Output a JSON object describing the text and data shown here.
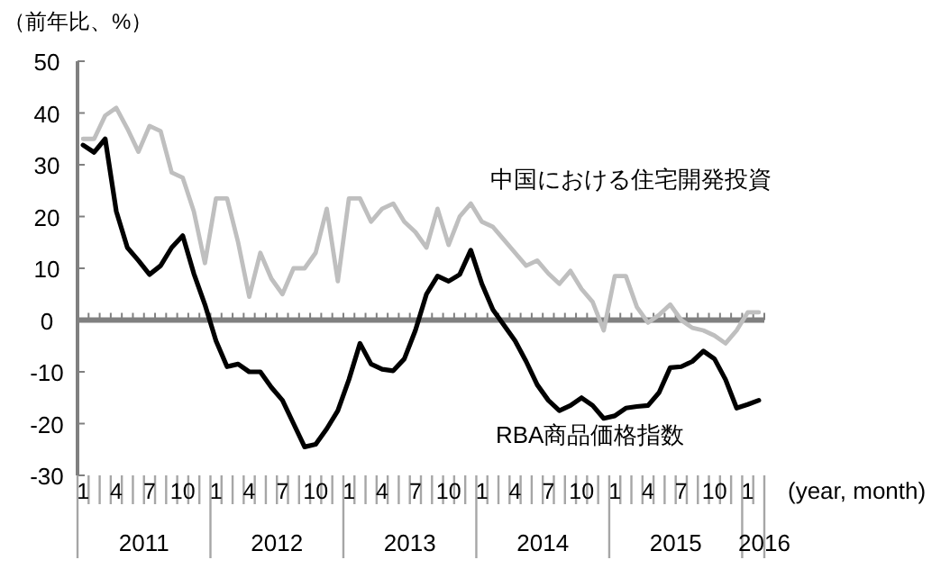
{
  "chart_data": {
    "type": "line",
    "ylabel": "（前年比、%）",
    "annotations": [
      "(year, month)",
      "2011",
      "2012",
      "2013",
      "2014",
      "2015",
      "2016"
    ],
    "categories": [
      "1",
      null,
      null,
      "4",
      null,
      null,
      "7",
      null,
      null,
      "10",
      null,
      null,
      "1",
      null,
      null,
      "4",
      null,
      null,
      "7",
      null,
      null,
      "10",
      null,
      null,
      "1",
      null,
      null,
      "4",
      null,
      null,
      "7",
      null,
      null,
      "10",
      null,
      null,
      "1",
      null,
      null,
      "4",
      null,
      null,
      "7",
      null,
      null,
      "10",
      null,
      null,
      "1",
      null,
      null,
      "4",
      null,
      null,
      "7",
      null,
      null,
      "10",
      null,
      null,
      "1",
      null
    ],
    "series": [
      {
        "name": "中国における住宅開発投資",
        "color": "#bfbfbf",
        "values": [
          35,
          35,
          39.5,
          41,
          37,
          32.5,
          37.5,
          36.5,
          28.5,
          27.5,
          21,
          11,
          23.5,
          23.5,
          15,
          4.5,
          13,
          8,
          5,
          10,
          10,
          13,
          21.5,
          7.5,
          23.5,
          23.5,
          19,
          21.5,
          22.5,
          19,
          17,
          14,
          21.5,
          14.5,
          20,
          22.5,
          19,
          18,
          15.5,
          13,
          10.5,
          11.5,
          9,
          7,
          9.5,
          6,
          3.5,
          -2,
          8.5,
          8.5,
          2.5,
          -0.5,
          1,
          3,
          0,
          -1.5,
          -2,
          -3,
          -4.5,
          -2,
          1.5,
          1.5
        ]
      },
      {
        "name": "RBA商品価格指数",
        "color": "#000000",
        "values": [
          33.8,
          32.4,
          35,
          21,
          14,
          11.5,
          8.8,
          10.5,
          14,
          16.3,
          9,
          3,
          -4,
          -9,
          -8.5,
          -10,
          -10,
          -13,
          -15.5,
          -20,
          -24.5,
          -24,
          -21,
          -17.5,
          -11.5,
          -4.5,
          -8.5,
          -9.5,
          -9.8,
          -7.5,
          -2,
          5,
          8.5,
          7.5,
          8.8,
          13.5,
          7,
          2,
          -1,
          -4,
          -8,
          -12.5,
          -15.5,
          -17.5,
          -16.5,
          -15,
          -16.5,
          -19,
          -18.5,
          -17,
          -16.7,
          -16.5,
          -14,
          -9.2,
          -9,
          -8,
          -6,
          -7.5,
          -11.5,
          -17,
          -16.3,
          -15.5
        ]
      }
    ],
    "ylim": [
      -30,
      50
    ],
    "yticks": [
      -30,
      -20,
      -10,
      0,
      10,
      20,
      30,
      40,
      50
    ],
    "ref_lines": [
      {
        "axis": "y",
        "value": 0,
        "color": "#808080"
      }
    ],
    "grid": false,
    "legend": false,
    "marker": "none",
    "line_style": "solid"
  }
}
